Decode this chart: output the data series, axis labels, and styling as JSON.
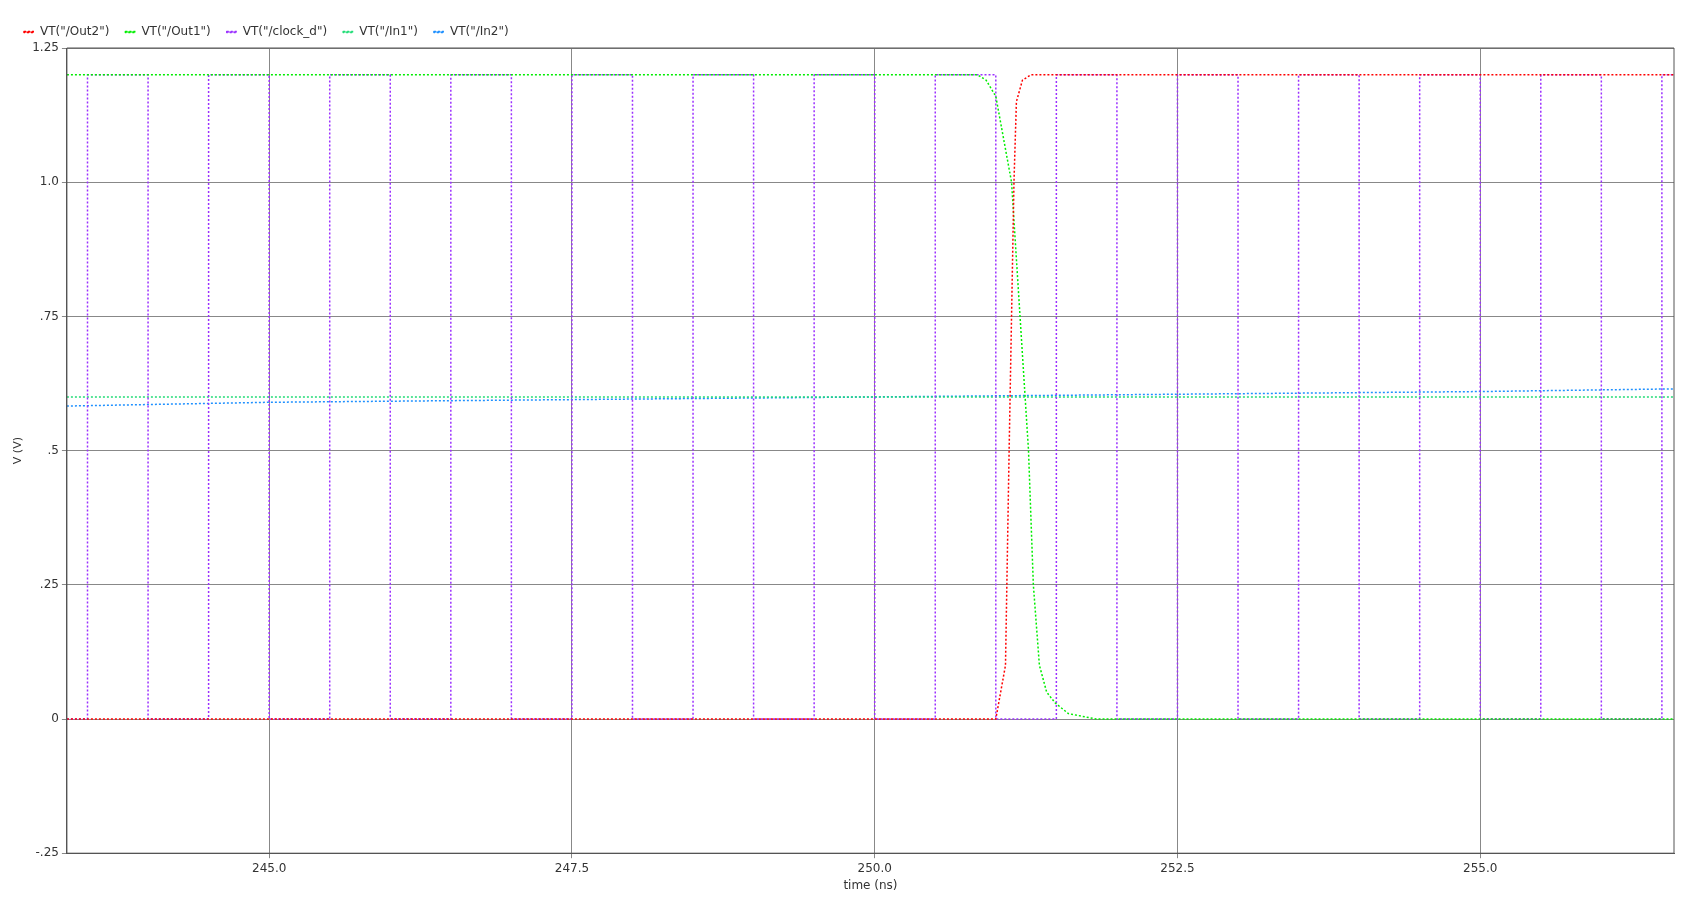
{
  "chart_data": {
    "type": "line",
    "xlabel": "time (ns)",
    "ylabel": "V (V)",
    "xlim": [
      243.33,
      256.6
    ],
    "ylim": [
      -0.25,
      1.25
    ],
    "xticks": [
      {
        "value": 245,
        "label": "245.0"
      },
      {
        "value": 247.5,
        "label": "247.5"
      },
      {
        "value": 250,
        "label": "250.0"
      },
      {
        "value": 252.5,
        "label": "252.5"
      },
      {
        "value": 255,
        "label": "255.0"
      }
    ],
    "yticks": [
      {
        "value": -0.25,
        "label": "-.25"
      },
      {
        "value": 0,
        "label": "0"
      },
      {
        "value": 0.25,
        "label": ".25"
      },
      {
        "value": 0.5,
        "label": ".5"
      },
      {
        "value": 0.75,
        "label": ".75"
      },
      {
        "value": 1,
        "label": "1.0"
      },
      {
        "value": 1.25,
        "label": "1.25"
      }
    ],
    "grid": true,
    "legend": "top left",
    "marker": "none",
    "line_style": "dotted",
    "series": [
      {
        "name": "VT(\"/Out2\")",
        "color": "#ff0000",
        "x": [
          243.33,
          251.0,
          251.08,
          251.11,
          251.15,
          251.17,
          251.22,
          251.29,
          256.6
        ],
        "values": [
          0,
          0,
          0.1,
          0.5,
          1.0,
          1.15,
          1.19,
          1.2,
          1.2
        ]
      },
      {
        "name": "VT(\"/Out1\")",
        "color": "#00ee00",
        "x": [
          243.33,
          250.85,
          250.92,
          251.0,
          251.13,
          251.2,
          251.27,
          251.31,
          251.36,
          251.42,
          251.49,
          251.6,
          251.83,
          256.6
        ],
        "values": [
          1.2,
          1.2,
          1.19,
          1.16,
          1.0,
          0.75,
          0.5,
          0.25,
          0.1,
          0.05,
          0.03,
          0.01,
          0,
          0
        ]
      },
      {
        "name": "VT(\"/clock_d\")",
        "color": "#9b30ff",
        "x": [
          243.33,
          243.5,
          243.5,
          244,
          244,
          244.5,
          244.5,
          245,
          245,
          245.5,
          245.5,
          246,
          246,
          246.5,
          246.5,
          247,
          247,
          247.5,
          247.5,
          248,
          248,
          248.5,
          248.5,
          249,
          249,
          249.5,
          249.5,
          250,
          250,
          250.5,
          250.5,
          251,
          251,
          251.5,
          251.5,
          252,
          252,
          252.5,
          252.5,
          253,
          253,
          253.5,
          253.5,
          254,
          254,
          254.5,
          254.5,
          255,
          255,
          255.5,
          255.5,
          256,
          256,
          256.5,
          256.5,
          256.6
        ],
        "values": [
          0,
          0,
          1.2,
          1.2,
          0,
          0,
          1.2,
          1.2,
          0,
          0,
          1.2,
          1.2,
          0,
          0,
          1.2,
          1.2,
          0,
          0,
          1.2,
          1.2,
          0,
          0,
          1.2,
          1.2,
          0,
          0,
          1.2,
          1.2,
          0,
          0,
          1.2,
          1.2,
          0,
          0,
          1.2,
          1.2,
          0,
          0,
          1.2,
          1.2,
          0,
          0,
          1.2,
          1.2,
          0,
          0,
          1.2,
          1.2,
          0,
          0,
          1.2,
          1.2,
          0,
          0,
          1.2,
          1.2
        ]
      },
      {
        "name": "VT(\"/In1\")",
        "color": "#22dd77",
        "x": [
          243.33,
          256.6
        ],
        "values": [
          0.6,
          0.6
        ]
      },
      {
        "name": "VT(\"/In2\")",
        "color": "#1e90ff",
        "x": [
          243.33,
          245,
          247.5,
          250,
          252.5,
          255,
          256.6
        ],
        "values": [
          0.583,
          0.59,
          0.595,
          0.6,
          0.605,
          0.61,
          0.615
        ]
      }
    ]
  }
}
